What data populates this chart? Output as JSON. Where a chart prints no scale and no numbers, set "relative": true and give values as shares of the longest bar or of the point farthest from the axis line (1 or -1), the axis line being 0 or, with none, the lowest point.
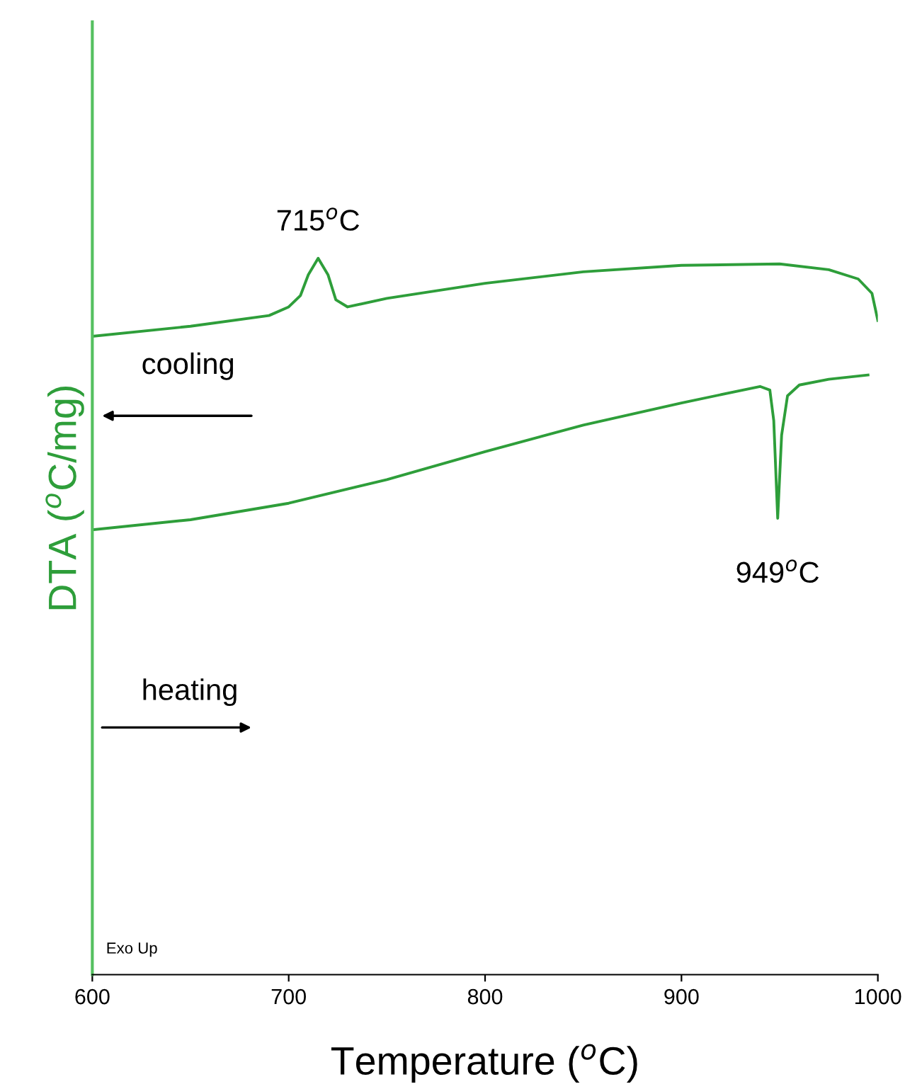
{
  "chart_data": {
    "type": "line",
    "relative": true,
    "xlabel": "Temperature ($^{o}$C)",
    "ylabel": "DTA ($^{o}$C/mg)",
    "xlim": [
      600,
      1000
    ],
    "xticks": [
      600,
      700,
      800,
      900,
      1000
    ],
    "grid": false,
    "annotations": [
      {
        "text": "715$^{o}$C",
        "x": 715,
        "y": 1.0
      },
      {
        "text": "949$^{o}$C",
        "x": 949,
        "y": 0.637
      },
      "cooling",
      "heating",
      "Exo Up"
    ],
    "series": [
      {
        "color": "#2e9e3a",
        "x": [
          600,
          650,
          690,
          700,
          706,
          710,
          715,
          720,
          724,
          730,
          750,
          800,
          850,
          900,
          950,
          975,
          990,
          997,
          1000
        ],
        "values": [
          0.891,
          0.905,
          0.92,
          0.932,
          0.948,
          0.977,
          1.0,
          0.977,
          0.942,
          0.932,
          0.944,
          0.965,
          0.981,
          0.99,
          0.992,
          0.984,
          0.971,
          0.951,
          0.913
        ]
      },
      {
        "color": "#2e9e3a",
        "x": [
          600,
          650,
          700,
          750,
          800,
          850,
          900,
          940,
          945,
          947,
          949,
          951,
          954,
          960,
          975,
          995
        ],
        "values": [
          0.621,
          0.635,
          0.658,
          0.691,
          0.73,
          0.767,
          0.798,
          0.821,
          0.816,
          0.773,
          0.637,
          0.753,
          0.808,
          0.823,
          0.831,
          0.837
        ]
      }
    ]
  }
}
